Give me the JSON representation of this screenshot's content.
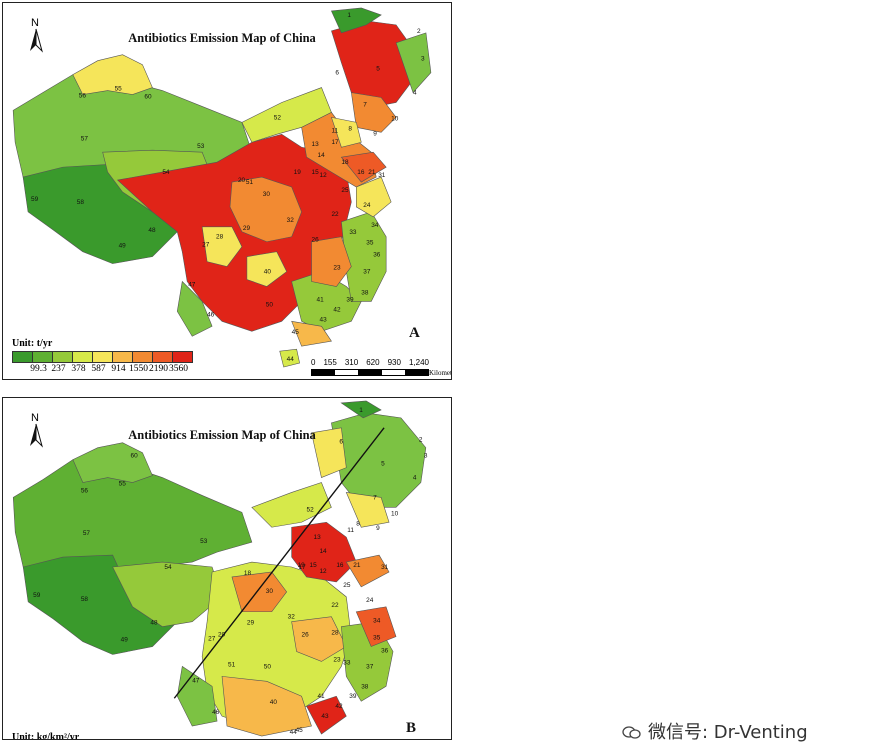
{
  "panels": [
    {
      "id": "A",
      "title": "Antibiotics Emission Map of China",
      "letter": "A",
      "north": "N",
      "legend_unit": "Unit: t/yr",
      "legend_colors": [
        "#3a9a2c",
        "#5fb033",
        "#95c93a",
        "#d6e94a",
        "#f5e55a",
        "#f7b84a",
        "#f28a32",
        "#ee5a26",
        "#e02418"
      ],
      "legend_ticks": [
        "99.3",
        "237",
        "378",
        "587",
        "914",
        "1550",
        "2190",
        "3560"
      ],
      "scale_ticks": [
        "0",
        "155",
        "310",
        "620",
        "930",
        "1,240"
      ],
      "scale_unit": "Kilometers"
    },
    {
      "id": "B",
      "title": "Antibiotics Emission Map of China",
      "letter": "B",
      "north": "N",
      "unit_label": "Unit: kg/km²/yr"
    }
  ],
  "region_labels_A": [
    "1",
    "2",
    "3",
    "4",
    "5",
    "6",
    "7",
    "8",
    "9",
    "10",
    "11",
    "12",
    "13",
    "14",
    "15",
    "16",
    "17",
    "18",
    "19",
    "20",
    "21",
    "22",
    "23",
    "24",
    "25",
    "26",
    "27",
    "28",
    "29",
    "30",
    "31",
    "32",
    "33",
    "34",
    "35",
    "36",
    "37",
    "38",
    "39",
    "40",
    "41",
    "42",
    "43",
    "44",
    "45",
    "46",
    "47",
    "48",
    "49",
    "50",
    "51",
    "52",
    "53",
    "54",
    "55",
    "56",
    "57",
    "58",
    "59",
    "60"
  ],
  "region_labels_B": [
    "1",
    "2",
    "3",
    "4",
    "5",
    "6",
    "7",
    "8",
    "9",
    "10",
    "11",
    "12",
    "13",
    "14",
    "15",
    "16",
    "17",
    "18",
    "19",
    "20",
    "21",
    "22",
    "23",
    "24",
    "25",
    "26",
    "27",
    "28",
    "29",
    "30",
    "31",
    "32",
    "33",
    "34",
    "35",
    "36",
    "37",
    "38",
    "39",
    "40",
    "41",
    "42",
    "43",
    "44",
    "45",
    "46",
    "47",
    "48",
    "49",
    "50",
    "51",
    "52",
    "53",
    "54",
    "55",
    "56",
    "57",
    "58",
    "59",
    "60"
  ],
  "watermark": "微信号: Dr-Venting"
}
